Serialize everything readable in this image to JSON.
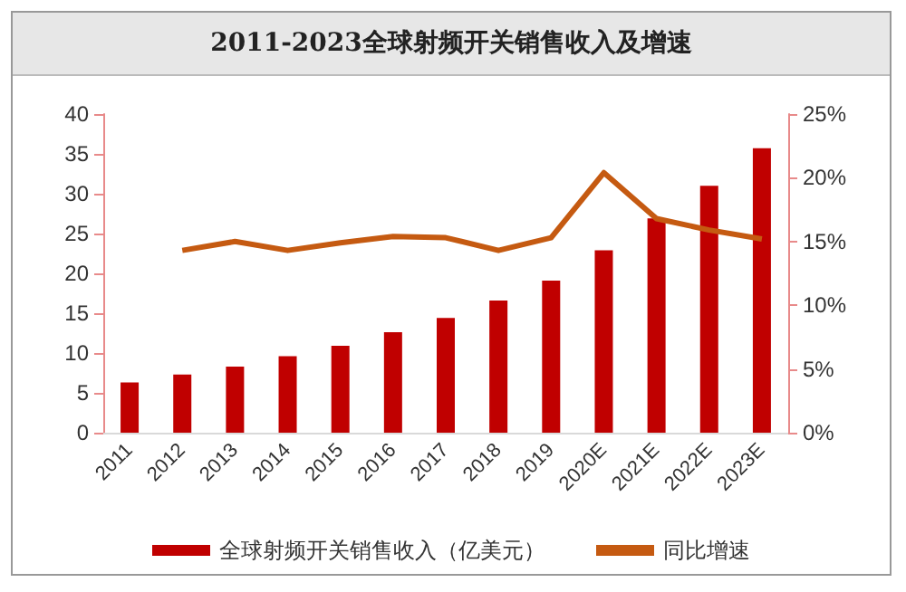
{
  "chart_data": {
    "type": "bar",
    "title": "2011-2023全球射频开关销售收入及增速",
    "categories": [
      "2011",
      "2012",
      "2013",
      "2014",
      "2015",
      "2016",
      "2017",
      "2018",
      "2019",
      "2020E",
      "2021E",
      "2022E",
      "2023E"
    ],
    "series": [
      {
        "name": "全球射频开关销售收入（亿美元）",
        "color": "#c00000",
        "values": [
          6.3,
          7.3,
          8.3,
          9.6,
          10.9,
          12.6,
          14.4,
          16.6,
          19.1,
          22.9,
          26.9,
          31.0,
          35.7
        ]
      },
      {
        "name": "同比增速",
        "type": "line",
        "axis": "y2",
        "color": "#c55a11",
        "values": [
          null,
          14.3,
          15.0,
          14.3,
          14.9,
          15.4,
          15.3,
          14.3,
          15.3,
          20.4,
          16.8,
          15.9,
          15.2
        ]
      }
    ],
    "ylim": [
      0,
      40
    ],
    "yticks": [
      0,
      5,
      10,
      15,
      20,
      25,
      30,
      35,
      40
    ],
    "y2lim": [
      0,
      25
    ],
    "y2ticks": [
      {
        "value": 0,
        "label": "0%"
      },
      {
        "value": 5,
        "label": "5%"
      },
      {
        "value": 10,
        "label": "10%"
      },
      {
        "value": 15,
        "label": "15%"
      },
      {
        "value": 20,
        "label": "20%"
      },
      {
        "value": 25,
        "label": "25%"
      }
    ],
    "grid": false,
    "legend": "bottom",
    "marker": "none"
  }
}
